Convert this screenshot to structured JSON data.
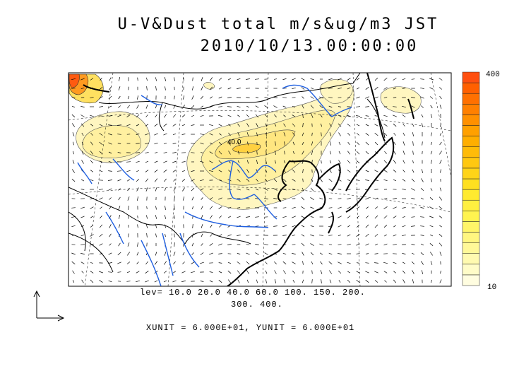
{
  "title": {
    "line1": "U-V&Dust total m/s&ug/m3 JST",
    "line2": "2010/10/13.00:00:00"
  },
  "colorbar": {
    "max_label": "400",
    "min_label": "10",
    "colors": [
      "#fffde0",
      "#fffcc8",
      "#fffab0",
      "#fff898",
      "#fff680",
      "#fff568",
      "#fff450",
      "#fff040",
      "#ffea30",
      "#ffe020",
      "#ffd418",
      "#ffc810",
      "#ffbb08",
      "#ffae00",
      "#ffa000",
      "#ff9000",
      "#ff8000",
      "#ff7000",
      "#ff6000",
      "#ff5010"
    ]
  },
  "contour_labels": [
    "40.0"
  ],
  "legend": {
    "lev_line1": "lev= 10.0 20.0 40.0 60.0 100. 150. 200.",
    "lev_line2": "300. 400.",
    "units": "XUNIT = 6.000E+01, YUNIT = 6.000E+01"
  },
  "map": {
    "coast_color": "#000000",
    "border_color": "#000000",
    "river_color": "#1f5fe0",
    "plume_fill": "#fff6c0",
    "plume_fill_core": "#fff0a0",
    "plume_fill_peak": "#ffe060"
  }
}
